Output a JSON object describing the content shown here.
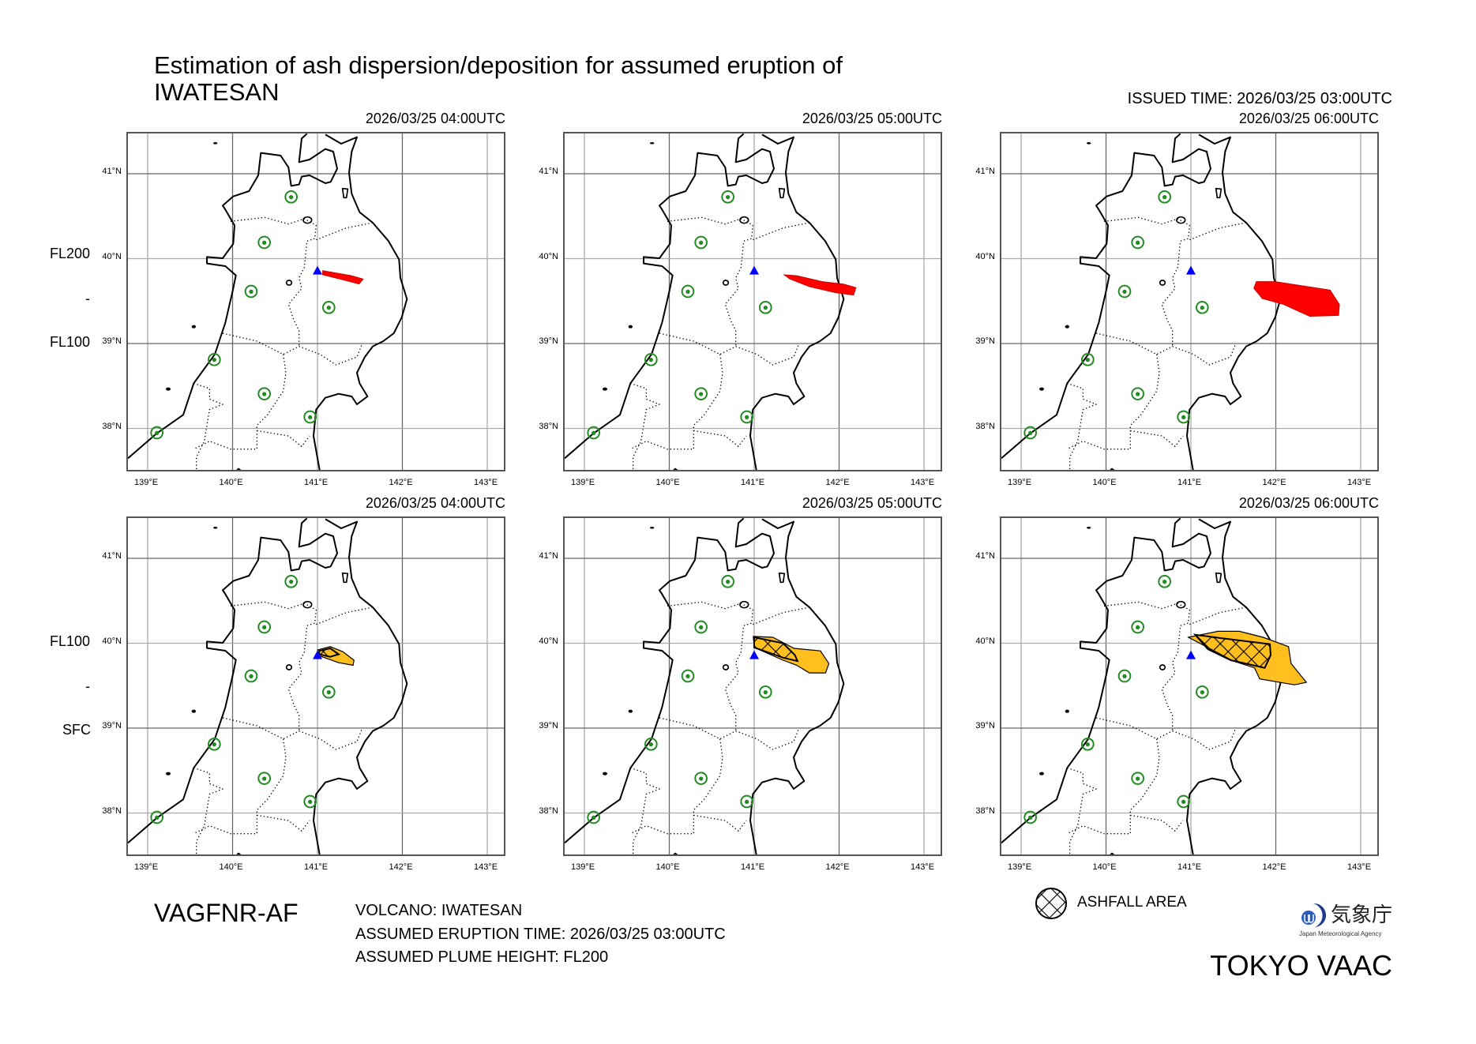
{
  "title": {
    "line1": "Estimation of ash dispersion/deposition for assumed eruption of",
    "line2": "IWATESAN"
  },
  "issued_time": "ISSUED TIME: 2026/03/25 03:00UTC",
  "rows": [
    {
      "upper": "FL200",
      "sep": "-",
      "lower": "FL100"
    },
    {
      "upper": "FL100",
      "sep": "-",
      "lower": "SFC"
    }
  ],
  "axes": {
    "lon_labels": [
      "139°E",
      "140°E",
      "141°E",
      "142°E",
      "143°E"
    ],
    "lon_values": [
      139,
      140,
      141,
      142,
      143
    ],
    "lat_labels": [
      "41°N",
      "40°N",
      "39°N",
      "38°N"
    ],
    "lat_values": [
      41,
      40,
      39,
      38
    ]
  },
  "volcano": {
    "name": "IWATESAN",
    "lon": 141.0,
    "lat": 39.85,
    "color": "#0000ff"
  },
  "colors": {
    "upper_plume": "#ff0000",
    "lower_plume": "#ffbf1f",
    "city": "#228b22"
  },
  "panels": [
    {
      "time": "2026/03/25 04:00UTC",
      "layer": "upper",
      "area": [
        [
          141.06,
          39.86
        ],
        [
          141.4,
          39.8
        ],
        [
          141.54,
          39.76
        ],
        [
          141.49,
          39.7
        ],
        [
          141.3,
          39.75
        ],
        [
          141.06,
          39.81
        ]
      ],
      "ashfall": []
    },
    {
      "time": "2026/03/25 05:00UTC",
      "layer": "upper",
      "area": [
        [
          141.35,
          39.81
        ],
        [
          141.5,
          39.8
        ],
        [
          141.8,
          39.73
        ],
        [
          142.05,
          39.7
        ],
        [
          142.2,
          39.66
        ],
        [
          142.17,
          39.57
        ],
        [
          141.95,
          39.6
        ],
        [
          141.65,
          39.67
        ],
        [
          141.42,
          39.76
        ]
      ],
      "ashfall": []
    },
    {
      "time": "2026/03/25 06:00UTC",
      "layer": "upper",
      "area": [
        [
          141.77,
          39.73
        ],
        [
          141.99,
          39.73
        ],
        [
          142.64,
          39.63
        ],
        [
          142.75,
          39.46
        ],
        [
          142.74,
          39.33
        ],
        [
          142.4,
          39.32
        ],
        [
          142.09,
          39.46
        ],
        [
          141.84,
          39.53
        ],
        [
          141.74,
          39.65
        ]
      ],
      "ashfall": []
    },
    {
      "time": "2026/03/25 04:00UTC",
      "layer": "lower",
      "area": [
        [
          141.0,
          39.92
        ],
        [
          141.15,
          39.96
        ],
        [
          141.3,
          39.9
        ],
        [
          141.43,
          39.8
        ],
        [
          141.42,
          39.74
        ],
        [
          141.25,
          39.77
        ],
        [
          141.0,
          39.86
        ]
      ],
      "ashfall": [
        [
          141.02,
          39.91
        ],
        [
          141.15,
          39.94
        ],
        [
          141.25,
          39.87
        ],
        [
          141.15,
          39.84
        ],
        [
          141.02,
          39.87
        ]
      ]
    },
    {
      "time": "2026/03/25 05:00UTC",
      "layer": "lower",
      "area": [
        [
          140.99,
          40.08
        ],
        [
          141.22,
          40.07
        ],
        [
          141.47,
          39.94
        ],
        [
          141.78,
          39.91
        ],
        [
          141.88,
          39.76
        ],
        [
          141.84,
          39.65
        ],
        [
          141.65,
          39.65
        ],
        [
          141.5,
          39.74
        ],
        [
          141.34,
          39.8
        ],
        [
          141.0,
          39.95
        ]
      ],
      "ashfall": [
        [
          141.0,
          40.07
        ],
        [
          141.34,
          40.0
        ],
        [
          141.48,
          39.86
        ],
        [
          141.51,
          39.79
        ],
        [
          141.34,
          39.83
        ],
        [
          141.0,
          39.95
        ]
      ]
    },
    {
      "time": "2026/03/25 06:00UTC",
      "layer": "lower",
      "area": [
        [
          140.97,
          40.07
        ],
        [
          141.32,
          40.14
        ],
        [
          141.57,
          40.14
        ],
        [
          141.85,
          40.07
        ],
        [
          142.15,
          39.96
        ],
        [
          142.18,
          39.76
        ],
        [
          142.36,
          39.54
        ],
        [
          142.22,
          39.51
        ],
        [
          141.81,
          39.58
        ],
        [
          141.75,
          39.71
        ],
        [
          141.5,
          39.79
        ],
        [
          141.22,
          39.94
        ]
      ],
      "ashfall": [
        [
          141.05,
          40.1
        ],
        [
          141.35,
          40.06
        ],
        [
          141.93,
          39.99
        ],
        [
          141.94,
          39.86
        ],
        [
          141.87,
          39.71
        ],
        [
          141.47,
          39.8
        ],
        [
          141.2,
          39.93
        ]
      ]
    }
  ],
  "footer": {
    "code": "VAGFNR-AF",
    "volcano": "VOLCANO: IWATESAN",
    "eruption_time": "ASSUMED ERUPTION TIME: 2026/03/25 03:00UTC",
    "plume_height": "ASSUMED PLUME HEIGHT: FL200",
    "legend_ashfall": "ASHFALL AREA",
    "agency_logo_text": "気象庁",
    "agency_subtitle": "Japan Meteorological Agency",
    "vaac": "TOKYO VAAC"
  }
}
